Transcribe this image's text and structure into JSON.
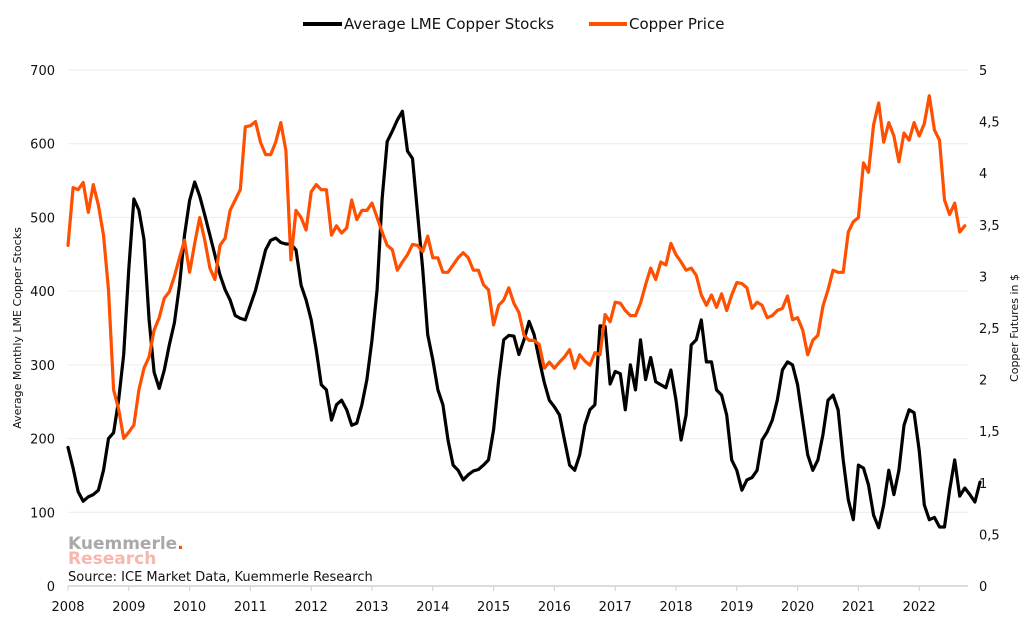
{
  "chart_data": {
    "type": "line",
    "title": "",
    "legend": {
      "placement": "top-center",
      "entries": [
        {
          "name": "Average LME Copper Stocks",
          "color": "#000000"
        },
        {
          "name": "Copper Price",
          "color": "#ff4f00"
        }
      ]
    },
    "xlabel": "",
    "x_ticks": [
      "2008",
      "2009",
      "2010",
      "2011",
      "2012",
      "2013",
      "2014",
      "2015",
      "2016",
      "2017",
      "2018",
      "2019",
      "2020",
      "2021",
      "2022"
    ],
    "x_range": [
      2008.0,
      2022.85
    ],
    "y_left": {
      "label": "Average Monthly LME Copper Stocks",
      "range": [
        0,
        700
      ],
      "ticks": [
        "0",
        "100",
        "200",
        "300",
        "400",
        "500",
        "600",
        "700"
      ]
    },
    "y_right": {
      "label": "Copper Futures in $",
      "range": [
        0,
        5
      ],
      "ticks": [
        "0",
        "0,5",
        "1",
        "1,5",
        "2",
        "2,5",
        "3",
        "3,5",
        "4",
        "4,5",
        "5"
      ]
    },
    "grid": true,
    "series": [
      {
        "name": "Average LME Copper Stocks",
        "axis": "left",
        "color": "#000000",
        "start": 2008.0,
        "step_months": 1,
        "values": [
          188,
          160,
          128,
          115,
          121,
          124,
          130,
          157,
          200,
          208,
          253,
          314,
          430,
          525,
          510,
          470,
          361,
          290,
          268,
          293,
          327,
          357,
          408,
          476,
          523,
          548,
          529,
          503,
          476,
          449,
          422,
          402,
          388,
          367,
          363,
          361,
          381,
          401,
          428,
          456,
          469,
          472,
          466,
          464,
          464,
          456,
          408,
          388,
          361,
          320,
          273,
          266,
          225,
          246,
          252,
          239,
          218,
          221,
          246,
          280,
          334,
          402,
          525,
          603,
          617,
          632,
          644,
          590,
          580,
          505,
          430,
          341,
          307,
          266,
          246,
          198,
          164,
          157,
          144,
          151,
          156,
          158,
          164,
          171,
          212,
          280,
          334,
          340,
          339,
          314,
          334,
          359,
          341,
          307,
          276,
          252,
          243,
          232,
          198,
          164,
          157,
          178,
          218,
          239,
          246,
          353,
          352,
          274,
          291,
          288,
          239,
          300,
          266,
          334,
          280,
          310,
          277,
          273,
          269,
          293,
          252,
          198,
          232,
          327,
          334,
          361,
          304,
          304,
          266,
          259,
          232,
          171,
          157,
          130,
          144,
          147,
          157,
          198,
          209,
          225,
          252,
          293,
          304,
          300,
          273,
          225,
          178,
          157,
          171,
          205,
          252,
          259,
          239,
          171,
          117,
          90,
          164,
          160,
          137,
          96,
          79,
          110,
          157,
          124,
          157,
          218,
          239,
          235,
          184,
          110,
          90,
          93,
          80,
          80,
          130,
          171,
          122,
          133,
          124,
          114,
          141
        ]
      },
      {
        "name": "Copper Price",
        "axis": "right",
        "color": "#ff4f00",
        "start": 2008.0,
        "step_months": 1,
        "values": [
          3.3,
          3.86,
          3.84,
          3.91,
          3.62,
          3.89,
          3.69,
          3.4,
          2.87,
          1.9,
          1.71,
          1.43,
          1.49,
          1.56,
          1.9,
          2.11,
          2.22,
          2.48,
          2.6,
          2.79,
          2.85,
          3.0,
          3.18,
          3.35,
          3.04,
          3.32,
          3.57,
          3.35,
          3.08,
          2.97,
          3.3,
          3.37,
          3.64,
          3.74,
          3.84,
          4.45,
          4.46,
          4.5,
          4.3,
          4.18,
          4.18,
          4.3,
          4.49,
          4.22,
          3.16,
          3.64,
          3.57,
          3.45,
          3.82,
          3.89,
          3.84,
          3.84,
          3.4,
          3.49,
          3.42,
          3.47,
          3.74,
          3.55,
          3.64,
          3.64,
          3.71,
          3.57,
          3.43,
          3.3,
          3.26,
          3.06,
          3.14,
          3.21,
          3.31,
          3.3,
          3.24,
          3.39,
          3.18,
          3.18,
          3.04,
          3.04,
          3.11,
          3.18,
          3.23,
          3.18,
          3.06,
          3.06,
          2.92,
          2.87,
          2.53,
          2.72,
          2.77,
          2.89,
          2.74,
          2.65,
          2.43,
          2.38,
          2.38,
          2.34,
          2.11,
          2.17,
          2.11,
          2.17,
          2.22,
          2.29,
          2.11,
          2.24,
          2.18,
          2.14,
          2.26,
          2.24,
          2.63,
          2.56,
          2.75,
          2.74,
          2.67,
          2.62,
          2.62,
          2.74,
          2.92,
          3.08,
          2.97,
          3.14,
          3.11,
          3.32,
          3.21,
          3.14,
          3.06,
          3.08,
          3.01,
          2.82,
          2.72,
          2.82,
          2.7,
          2.83,
          2.67,
          2.82,
          2.94,
          2.93,
          2.89,
          2.69,
          2.75,
          2.72,
          2.6,
          2.62,
          2.67,
          2.69,
          2.81,
          2.58,
          2.6,
          2.48,
          2.24,
          2.38,
          2.43,
          2.71,
          2.87,
          3.06,
          3.04,
          3.04,
          3.43,
          3.53,
          3.57,
          4.1,
          4.01,
          4.47,
          4.68,
          4.3,
          4.49,
          4.36,
          4.11,
          4.39,
          4.32,
          4.49,
          4.36,
          4.48,
          4.75,
          4.42,
          4.32,
          3.74,
          3.6,
          3.71,
          3.43,
          3.49
        ]
      }
    ],
    "annotations": {
      "source": "Source: ICE Market Data, Kuemmerle Research",
      "brand_line1": "Kuemmerle",
      "brand_dot": ".",
      "brand_line2": "Research"
    }
  }
}
